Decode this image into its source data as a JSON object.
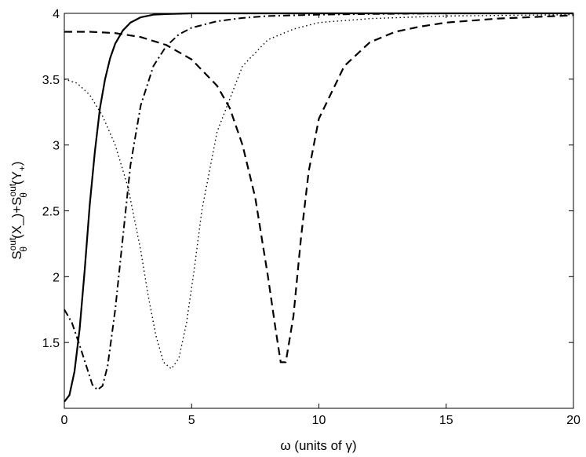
{
  "chart_data": {
    "type": "line",
    "title": "",
    "xlabel": "ω (units of γ)",
    "ylabel_parts": {
      "s1": "S",
      "sup1": "out",
      "sub1": "θ",
      "arg1": "(X_)",
      "plus": "+",
      "s2": "S",
      "sup2": "out",
      "sub2": "θ",
      "arg2": "(Y",
      "argsub2": "+",
      "close2": ")"
    },
    "xlim": [
      0,
      20
    ],
    "ylim": [
      1,
      4
    ],
    "xticks": [
      0,
      5,
      10,
      15,
      20
    ],
    "yticks": [
      1.5,
      2,
      2.5,
      3,
      3.5,
      4
    ],
    "xtick_labels": [
      "0",
      "5",
      "10",
      "15",
      "20"
    ],
    "ytick_labels": [
      "1.5",
      "2",
      "2.5",
      "3",
      "3.5",
      "4"
    ],
    "grid": false,
    "legend": "none",
    "series": [
      {
        "style": "solid",
        "x": [
          0,
          0.2,
          0.4,
          0.6,
          0.8,
          1.0,
          1.2,
          1.4,
          1.6,
          1.8,
          2.0,
          2.3,
          2.6,
          3.0,
          3.5,
          4.0,
          5.0,
          6.0,
          8.0,
          10,
          15,
          20
        ],
        "y": [
          1.05,
          1.1,
          1.28,
          1.6,
          2.05,
          2.55,
          2.95,
          3.28,
          3.5,
          3.66,
          3.77,
          3.87,
          3.93,
          3.97,
          3.99,
          3.995,
          4.0,
          4.0,
          4.0,
          4.0,
          4.0,
          4.0
        ]
      },
      {
        "style": "dashdot",
        "x": [
          0,
          0.3,
          0.6,
          0.9,
          1.1,
          1.3,
          1.5,
          1.7,
          2.0,
          2.3,
          2.6,
          3.0,
          3.5,
          4.0,
          4.5,
          5.0,
          6.0,
          7.0,
          8.0,
          10,
          12,
          15,
          20
        ],
        "y": [
          1.75,
          1.65,
          1.48,
          1.3,
          1.18,
          1.14,
          1.17,
          1.32,
          1.75,
          2.3,
          2.85,
          3.3,
          3.6,
          3.75,
          3.84,
          3.89,
          3.94,
          3.965,
          3.98,
          3.99,
          3.995,
          4.0,
          4.0
        ]
      },
      {
        "style": "dotted",
        "x": [
          0,
          0.5,
          1.0,
          1.5,
          2.0,
          2.5,
          3.0,
          3.3,
          3.6,
          3.9,
          4.2,
          4.5,
          4.8,
          5.1,
          5.4,
          6.0,
          7.0,
          8.0,
          9.0,
          10,
          12,
          15,
          20
        ],
        "y": [
          3.5,
          3.47,
          3.38,
          3.22,
          3.0,
          2.68,
          2.2,
          1.85,
          1.55,
          1.35,
          1.3,
          1.38,
          1.65,
          2.05,
          2.5,
          3.1,
          3.6,
          3.8,
          3.88,
          3.93,
          3.96,
          3.98,
          3.99
        ]
      },
      {
        "style": "dashed",
        "x": [
          0,
          1,
          2,
          3,
          4,
          5,
          6,
          6.5,
          7.0,
          7.5,
          8.0,
          8.3,
          8.5,
          8.7,
          9.0,
          9.3,
          9.6,
          10,
          11,
          12,
          13,
          14,
          15,
          17,
          20
        ],
        "y": [
          3.86,
          3.86,
          3.85,
          3.82,
          3.76,
          3.65,
          3.45,
          3.28,
          3.0,
          2.6,
          2.0,
          1.6,
          1.35,
          1.35,
          1.7,
          2.3,
          2.8,
          3.2,
          3.6,
          3.78,
          3.86,
          3.9,
          3.93,
          3.96,
          3.985
        ]
      }
    ]
  }
}
